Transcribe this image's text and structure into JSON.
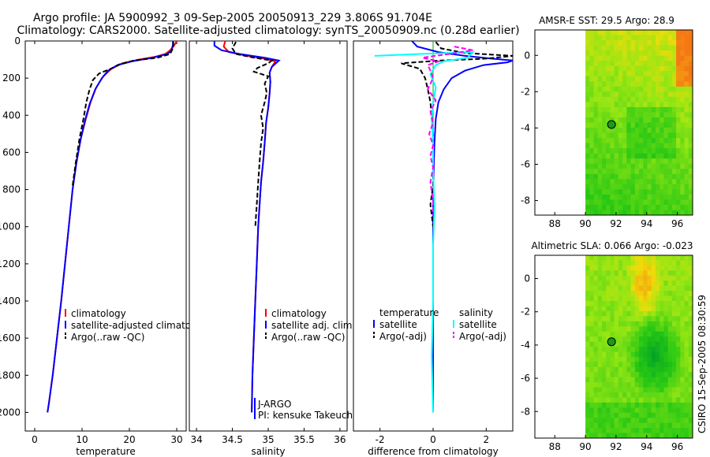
{
  "title": {
    "line1": "Argo profile: JA 5900992_3 09-Sep-2005 20050913_229 3.806S 91.704E",
    "line2": "Climatology: CARS2000. Satellite-adjusted climatology: synTS_20050909.nc (0.28d earlier)"
  },
  "credit": "CSIRO 15-Sep-2005 08:30:59",
  "colors": {
    "climatology": "#ff0000",
    "satellite": "#0000ff",
    "argo": "#000000",
    "salinity_satellite": "#00ffff",
    "salinity_argo": "#ff00ff"
  },
  "chart_data": [
    {
      "type": "line",
      "name": "temperature-profile",
      "xlabel": "temperature",
      "xlim": [
        -2,
        32
      ],
      "ylim": [
        2100,
        0
      ],
      "xticks": [
        0,
        10,
        20,
        30
      ],
      "yticks": [
        0,
        200,
        400,
        600,
        800,
        1000,
        1200,
        1400,
        1600,
        1800,
        2000
      ],
      "legend": [
        "climatology",
        "satellite-adjusted climatology",
        "Argo(..raw -QC)"
      ],
      "series": [
        {
          "name": "climatology",
          "color": "#ff0000",
          "dash": "",
          "points": [
            [
              30,
              0
            ],
            [
              29.8,
              10
            ],
            [
              29.3,
              30
            ],
            [
              28.6,
              50
            ],
            [
              27.6,
              70
            ],
            [
              25.5,
              85
            ],
            [
              22,
              100
            ],
            [
              18.5,
              120
            ],
            [
              16.2,
              150
            ],
            [
              14.5,
              190
            ],
            [
              13,
              250
            ],
            [
              11.8,
              330
            ],
            [
              10.8,
              420
            ],
            [
              9.8,
              520
            ],
            [
              8.8,
              650
            ],
            [
              8,
              800
            ],
            [
              7.2,
              1000
            ],
            [
              6.4,
              1200
            ],
            [
              5.6,
              1400
            ],
            [
              4.7,
              1600
            ],
            [
              3.8,
              1800
            ],
            [
              3,
              1950
            ],
            [
              2.7,
              2000
            ]
          ]
        },
        {
          "name": "satellite-adjusted climatology",
          "color": "#0000ff",
          "dash": "",
          "points": [
            [
              29.2,
              0
            ],
            [
              29.2,
              20
            ],
            [
              29,
              40
            ],
            [
              28.8,
              55
            ],
            [
              28,
              70
            ],
            [
              25,
              90
            ],
            [
              20.5,
              110
            ],
            [
              17.5,
              130
            ],
            [
              15.5,
              160
            ],
            [
              14.2,
              200
            ],
            [
              12.8,
              260
            ],
            [
              11.6,
              340
            ],
            [
              10.6,
              430
            ],
            [
              9.7,
              530
            ],
            [
              8.8,
              660
            ],
            [
              8,
              800
            ],
            [
              7.2,
              1000
            ],
            [
              6.4,
              1200
            ],
            [
              5.6,
              1400
            ],
            [
              4.7,
              1600
            ],
            [
              3.8,
              1800
            ],
            [
              3,
              1950
            ],
            [
              2.7,
              2000
            ]
          ]
        },
        {
          "name": "Argo(..raw -QC)",
          "color": "#000000",
          "dash": "6,3",
          "points": [
            [
              29.3,
              5
            ],
            [
              29.2,
              40
            ],
            [
              28.6,
              70
            ],
            [
              26,
              90
            ],
            [
              21,
              105
            ],
            [
              18,
              125
            ],
            [
              16,
              150
            ],
            [
              13.6,
              175
            ],
            [
              12.3,
              210
            ],
            [
              11.6,
              260
            ],
            [
              10.9,
              330
            ],
            [
              10.3,
              420
            ],
            [
              9.5,
              520
            ],
            [
              8.7,
              650
            ],
            [
              8,
              780
            ]
          ]
        }
      ]
    },
    {
      "type": "line",
      "name": "salinity-profile",
      "xlabel": "salinity",
      "xlim": [
        33.9,
        36.1
      ],
      "ylim": [
        2100,
        0
      ],
      "xticks": [
        34,
        34.5,
        35,
        35.5,
        36
      ],
      "legend": [
        "climatology",
        "satellite adj. clim.",
        "Argo(..raw -QC)"
      ],
      "annotations": [
        "J-ARGO",
        "PI: kensuke Takeuchi"
      ],
      "series": [
        {
          "name": "climatology",
          "color": "#ff0000",
          "dash": "",
          "points": [
            [
              34.4,
              0
            ],
            [
              34.38,
              30
            ],
            [
              34.45,
              60
            ],
            [
              34.7,
              80
            ],
            [
              34.95,
              95
            ],
            [
              35.1,
              110
            ],
            [
              35.05,
              140
            ],
            [
              35.02,
              170
            ],
            [
              35.03,
              220
            ],
            [
              35.02,
              280
            ],
            [
              35,
              360
            ],
            [
              34.97,
              440
            ],
            [
              34.95,
              550
            ],
            [
              34.93,
              650
            ],
            [
              34.9,
              760
            ],
            [
              34.88,
              880
            ],
            [
              34.86,
              1000
            ],
            [
              34.84,
              1200
            ],
            [
              34.82,
              1400
            ],
            [
              34.8,
              1600
            ],
            [
              34.78,
              1800
            ],
            [
              34.77,
              2000
            ]
          ]
        },
        {
          "name": "satellite adj. clim.",
          "color": "#0000ff",
          "dash": "",
          "points": [
            [
              34.25,
              0
            ],
            [
              34.25,
              25
            ],
            [
              34.35,
              50
            ],
            [
              34.6,
              70
            ],
            [
              34.95,
              90
            ],
            [
              35.15,
              105
            ],
            [
              35.05,
              140
            ],
            [
              35.02,
              170
            ],
            [
              35.03,
              220
            ],
            [
              35.02,
              280
            ],
            [
              35,
              360
            ],
            [
              34.97,
              440
            ],
            [
              34.95,
              550
            ],
            [
              34.93,
              650
            ],
            [
              34.9,
              760
            ],
            [
              34.88,
              880
            ],
            [
              34.86,
              1000
            ],
            [
              34.84,
              1200
            ],
            [
              34.82,
              1400
            ],
            [
              34.8,
              1600
            ],
            [
              34.78,
              1800
            ],
            [
              34.77,
              2000
            ]
          ]
        },
        {
          "name": "Argo(..raw -QC)",
          "color": "#000000",
          "dash": "6,3",
          "points": [
            [
              34.55,
              5
            ],
            [
              34.5,
              40
            ],
            [
              34.55,
              70
            ],
            [
              34.8,
              90
            ],
            [
              35.05,
              105
            ],
            [
              35.0,
              120
            ],
            [
              34.85,
              145
            ],
            [
              34.8,
              165
            ],
            [
              35.0,
              190
            ],
            [
              34.95,
              230
            ],
            [
              34.98,
              280
            ],
            [
              34.95,
              330
            ],
            [
              34.9,
              400
            ],
            [
              34.93,
              470
            ],
            [
              34.9,
              550
            ],
            [
              34.88,
              650
            ],
            [
              34.86,
              760
            ],
            [
              34.84,
              880
            ],
            [
              34.82,
              1000
            ]
          ]
        }
      ]
    },
    {
      "type": "line",
      "name": "difference-profile",
      "xlabel": "difference from climatology",
      "xlim": [
        -3,
        3
      ],
      "ylim": [
        2100,
        0
      ],
      "xticks": [
        -2,
        0,
        2
      ],
      "legend_titles": [
        "temperature",
        "salinity"
      ],
      "legend": [
        "satellite",
        "Argo(-adj)",
        "satellite",
        "Argo(-adj)"
      ],
      "series": [
        {
          "name": "temperature satellite",
          "color": "#0000ff",
          "dash": "",
          "points": [
            [
              -0.8,
              0
            ],
            [
              -0.6,
              30
            ],
            [
              0.2,
              60
            ],
            [
              1.2,
              80
            ],
            [
              2.2,
              95
            ],
            [
              3,
              105
            ],
            [
              2.8,
              115
            ],
            [
              1.9,
              130
            ],
            [
              1.2,
              160
            ],
            [
              0.7,
              200
            ],
            [
              0.4,
              260
            ],
            [
              0.2,
              330
            ],
            [
              0.1,
              420
            ],
            [
              0.05,
              550
            ],
            [
              0.02,
              700
            ],
            [
              0,
              900
            ],
            [
              0,
              2000
            ]
          ]
        },
        {
          "name": "temperature Argo(-adj)",
          "color": "#000000",
          "dash": "6,3",
          "points": [
            [
              0.1,
              5
            ],
            [
              0.3,
              40
            ],
            [
              1.2,
              65
            ],
            [
              3,
              80
            ],
            [
              2,
              95
            ],
            [
              0.3,
              105
            ],
            [
              -1.2,
              120
            ],
            [
              -0.5,
              150
            ],
            [
              -0.3,
              200
            ],
            [
              -0.2,
              260
            ],
            [
              -0.1,
              330
            ],
            [
              -0.05,
              420
            ],
            [
              0,
              520
            ],
            [
              0,
              650
            ],
            [
              0,
              780
            ],
            [
              -0.1,
              880
            ],
            [
              0,
              1000
            ]
          ]
        },
        {
          "name": "salinity satellite",
          "color": "#00ffff",
          "dash": "",
          "points": [
            [
              -2.2,
              80
            ],
            [
              -0.5,
              70
            ],
            [
              1.5,
              60
            ],
            [
              1.3,
              90
            ],
            [
              0.4,
              110
            ],
            [
              0.1,
              130
            ],
            [
              -0.1,
              180
            ],
            [
              0.1,
              250
            ],
            [
              0,
              330
            ],
            [
              -0.05,
              420
            ],
            [
              0,
              550
            ],
            [
              0,
              700
            ],
            [
              0.05,
              900
            ],
            [
              0,
              1100
            ],
            [
              0,
              1400
            ],
            [
              -0.05,
              1700
            ],
            [
              0,
              2000
            ]
          ]
        },
        {
          "name": "salinity Argo(-adj)",
          "color": "#ff00ff",
          "dash": "6,3",
          "points": [
            [
              0.8,
              30
            ],
            [
              1.5,
              50
            ],
            [
              0.6,
              70
            ],
            [
              -0.4,
              90
            ],
            [
              0.2,
              110
            ],
            [
              -0.2,
              130
            ],
            [
              -0.1,
              160
            ],
            [
              0,
              200
            ],
            [
              -0.2,
              260
            ],
            [
              0.1,
              320
            ],
            [
              -0.1,
              380
            ],
            [
              0,
              440
            ],
            [
              -0.15,
              500
            ],
            [
              0,
              560
            ],
            [
              -0.1,
              620
            ],
            [
              0,
              680
            ],
            [
              -0.1,
              760
            ],
            [
              0,
              860
            ],
            [
              0,
              940
            ]
          ]
        }
      ]
    },
    {
      "type": "heatmap",
      "name": "amsr-e-sst",
      "title": "AMSR-E SST: 29.5  Argo: 28.9",
      "xlim": [
        86.7,
        97
      ],
      "ylim": [
        -8.8,
        1.4
      ],
      "xticks": [
        88,
        90,
        92,
        94,
        96
      ],
      "yticks": [
        0,
        -2,
        -4,
        -6,
        -8
      ],
      "data_xlim": [
        90,
        97
      ],
      "argo_position": [
        91.704,
        -3.806
      ]
    },
    {
      "type": "heatmap",
      "name": "altimetric-sla",
      "title": "Altimetric SLA: 0.066  Argo: -0.023",
      "xlim": [
        86.7,
        97
      ],
      "ylim": [
        -9.6,
        1.4
      ],
      "xticks": [
        88,
        90,
        92,
        94,
        96
      ],
      "yticks": [
        0,
        -2,
        -4,
        -6,
        -8
      ],
      "data_xlim": [
        90,
        97
      ],
      "argo_position": [
        91.704,
        -3.806
      ]
    }
  ]
}
